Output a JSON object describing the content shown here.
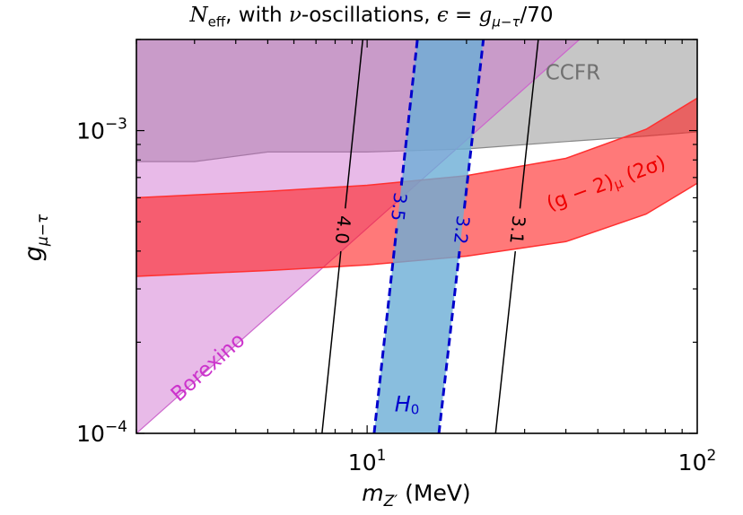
{
  "chart_data": {
    "type": "area",
    "title": {
      "n": "N",
      "n_sub": "eff",
      "middle": ", with ",
      "nu": "ν",
      "after_nu": "-oscillations, ",
      "eps": "ϵ",
      "eq": " = ",
      "g": "g",
      "g_sub": "μ−τ",
      "tail": "/70"
    },
    "xlabel": {
      "m": "m",
      "sub": "Z′",
      "unit": " (MeV)"
    },
    "ylabel": {
      "g": "g",
      "sub": "μ−τ"
    },
    "xscale": "log",
    "yscale": "log",
    "xlim": [
      2,
      100
    ],
    "ylim": [
      0.0001,
      0.002
    ],
    "x_ticks": [
      {
        "value": 10,
        "base": "10",
        "exp": "1"
      },
      {
        "value": 100,
        "base": "10",
        "exp": "2"
      }
    ],
    "y_ticks": [
      {
        "value": 0.0001,
        "base": "10",
        "exp": "−4"
      },
      {
        "value": 0.001,
        "base": "10",
        "exp": "−3"
      }
    ],
    "regions": [
      {
        "name": "CCFR",
        "color": "#a0a0a0",
        "opacity": 0.6,
        "lower": [
          [
            2,
            0.00079
          ],
          [
            3,
            0.00079
          ],
          [
            5,
            0.00085
          ],
          [
            10,
            0.00085
          ],
          [
            20,
            0.00087
          ],
          [
            40,
            0.00092
          ],
          [
            70,
            0.00096
          ],
          [
            100,
            0.00099
          ]
        ],
        "label": {
          "text": "CCFR",
          "x": 42,
          "y": 0.00155,
          "color": "#707070",
          "rotate": 0
        }
      },
      {
        "name": "Borexino",
        "color": "#cc66cc",
        "opacity": 0.45,
        "boundary": [
          [
            2,
            0.0001
          ],
          [
            44,
            0.002
          ]
        ],
        "label": {
          "text": "Borexino",
          "x": 3.3,
          "y": 0.000165,
          "color": "#cc33cc",
          "rotate": -42
        }
      },
      {
        "name": "(g − 2)μ (2σ)",
        "color": "#ff2020",
        "opacity": 0.6,
        "lower": [
          [
            2,
            0.00033
          ],
          [
            5,
            0.000345
          ],
          [
            10,
            0.00036
          ],
          [
            20,
            0.000385
          ],
          [
            40,
            0.00043
          ],
          [
            70,
            0.00053
          ],
          [
            100,
            0.00067
          ]
        ],
        "upper": [
          [
            2,
            0.0006
          ],
          [
            5,
            0.00063
          ],
          [
            10,
            0.00066
          ],
          [
            20,
            0.00071
          ],
          [
            40,
            0.00081
          ],
          [
            70,
            0.00101
          ],
          [
            100,
            0.00128
          ]
        ],
        "label": {
          "g2": "(g − 2)",
          "mu": "μ",
          "sig": " (2σ)",
          "x": 53,
          "y": 0.00067,
          "color": "#ee0000",
          "rotate": -20
        }
      },
      {
        "name": "H0",
        "color": "#6baed6",
        "opacity": 0.8,
        "left_line": [
          [
            10.5,
            0.0001
          ],
          [
            14.2,
            0.002
          ]
        ],
        "right_line": [
          [
            16.5,
            0.0001
          ],
          [
            22.5,
            0.002
          ]
        ],
        "label": {
          "h": "H",
          "sub": "0",
          "x": 13.2,
          "y": 0.000125,
          "color": "#0000cc"
        }
      }
    ],
    "contours": [
      {
        "value": "4.0",
        "color": "#000000",
        "dashed": false,
        "line": [
          [
            7.3,
            0.0001
          ],
          [
            9.7,
            0.002
          ]
        ],
        "label_at": 0.00047
      },
      {
        "value": "3.5",
        "color": "#0000cc",
        "dashed": true,
        "line": [
          [
            10.5,
            0.0001
          ],
          [
            14.2,
            0.002
          ]
        ],
        "label_at": 0.00056
      },
      {
        "value": "3.2",
        "color": "#0000cc",
        "dashed": true,
        "line": [
          [
            16.5,
            0.0001
          ],
          [
            22.5,
            0.002
          ]
        ],
        "label_at": 0.00047
      },
      {
        "value": "3.1",
        "color": "#000000",
        "dashed": false,
        "line": [
          [
            24.5,
            0.0001
          ],
          [
            33,
            0.002
          ]
        ],
        "label_at": 0.00047
      }
    ]
  }
}
